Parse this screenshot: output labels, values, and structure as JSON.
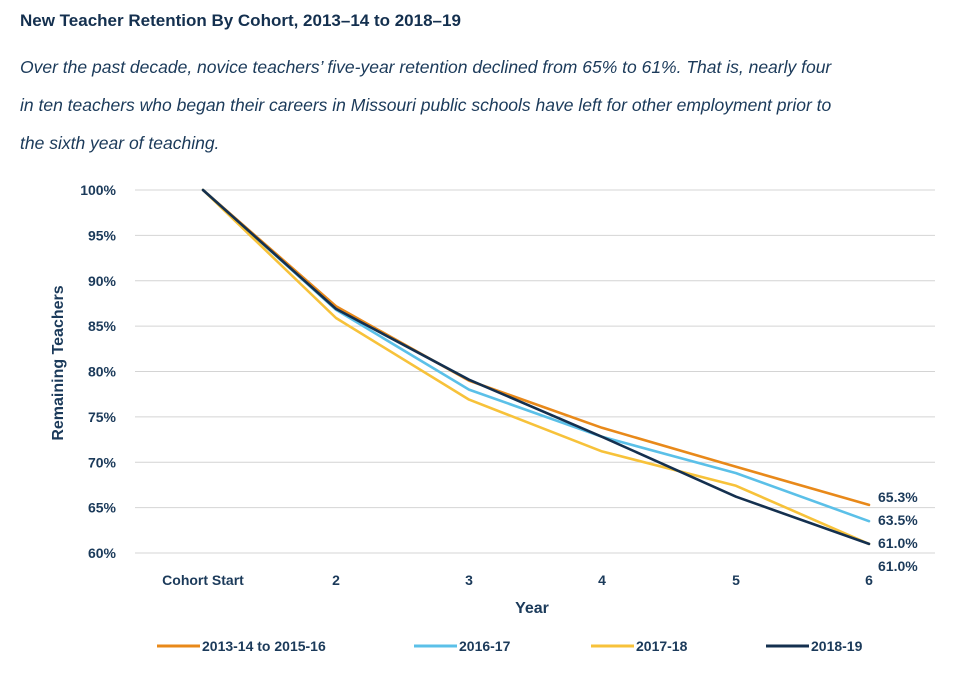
{
  "title": "New Teacher Retention By Cohort, 2013–14 to 2018–19",
  "subtitle_lines": [
    "Over the past decade, novice teachers’ five-year retention declined from 65% to 61%. That is, nearly four",
    "in ten teachers who began their careers in Missouri public schools have left for other employment prior to",
    "the sixth year of teaching."
  ],
  "chart_data": {
    "type": "line",
    "xlabel": "Year",
    "ylabel": "Remaining Teachers",
    "categories": [
      "Cohort Start",
      "2",
      "3",
      "4",
      "5",
      "6"
    ],
    "ylim": [
      60,
      100
    ],
    "yticks": [
      "100%",
      "95%",
      "90%",
      "85%",
      "80%",
      "75%",
      "70%",
      "65%",
      "60%"
    ],
    "grid": true,
    "legend_position": "bottom",
    "series": [
      {
        "name": "2013-14 to 2015-16",
        "color": "#e8891a",
        "values": [
          100,
          87.2,
          79.0,
          73.8,
          69.5,
          65.3
        ],
        "end_label": "65.3%"
      },
      {
        "name": "2016-17",
        "color": "#5bc0e8",
        "values": [
          100,
          86.8,
          78.0,
          72.8,
          68.8,
          63.5
        ],
        "end_label": "63.5%"
      },
      {
        "name": "2017-18",
        "color": "#f7c23a",
        "values": [
          100,
          85.9,
          76.9,
          71.2,
          67.4,
          61.0
        ],
        "end_label": "61.0%"
      },
      {
        "name": "2018-19",
        "color": "#14304f",
        "values": [
          100,
          86.9,
          79.1,
          72.8,
          66.2,
          61.0
        ],
        "end_label": "61.0%"
      }
    ]
  }
}
